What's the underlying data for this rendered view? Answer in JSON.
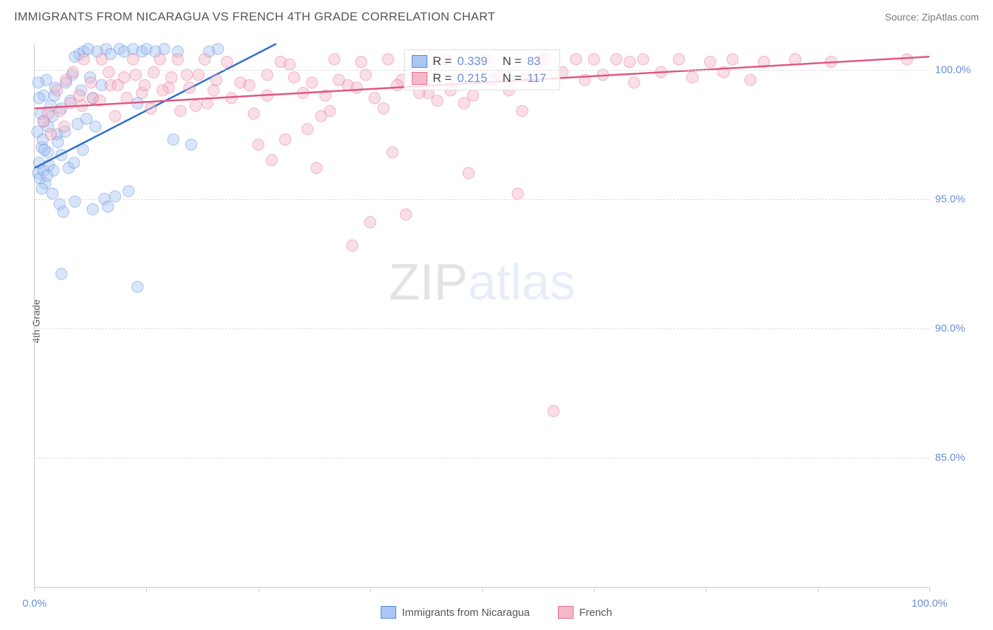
{
  "header": {
    "title": "IMMIGRANTS FROM NICARAGUA VS FRENCH 4TH GRADE CORRELATION CHART",
    "source_label": "Source: ZipAtlas.com"
  },
  "watermark": {
    "part1": "ZIP",
    "part2": "atlas"
  },
  "chart": {
    "type": "scatter",
    "y_axis_title": "4th Grade",
    "x_range": [
      0,
      100
    ],
    "y_range": [
      80,
      101
    ],
    "y_gridlines": [
      85,
      90,
      95,
      100
    ],
    "y_tick_labels": [
      "85.0%",
      "90.0%",
      "95.0%",
      "100.0%"
    ],
    "x_ticks": [
      0,
      12.5,
      25,
      37.5,
      50,
      62.5,
      75,
      87.5,
      100
    ],
    "x_tick_labels_at": {
      "0": "0.0%",
      "100": "100.0%"
    },
    "background_color": "#ffffff",
    "grid_color": "#dddddd",
    "axis_color": "#cccccc",
    "marker_radius": 8,
    "marker_opacity": 0.45,
    "line_width": 2.5,
    "series": [
      {
        "name": "Immigrants from Nicaragua",
        "color_fill": "#a9c6f5",
        "color_stroke": "#5b8ad6",
        "trend_color": "#2f6fd0",
        "R": "0.339",
        "N": "83",
        "trend_line": {
          "x1": 0,
          "y1": 96.2,
          "x2": 27,
          "y2": 101
        },
        "points": [
          [
            0.4,
            96.0
          ],
          [
            0.6,
            95.8
          ],
          [
            0.5,
            96.4
          ],
          [
            1.0,
            96.1
          ],
          [
            1.2,
            95.6
          ],
          [
            0.8,
            97.0
          ],
          [
            1.5,
            96.8
          ],
          [
            1.0,
            98.0
          ],
          [
            2.0,
            98.2
          ],
          [
            2.5,
            97.5
          ],
          [
            2.2,
            99.0
          ],
          [
            3.0,
            98.5
          ],
          [
            3.5,
            99.5
          ],
          [
            3.0,
            96.7
          ],
          [
            4.0,
            98.8
          ],
          [
            4.5,
            100.5
          ],
          [
            5.0,
            100.6
          ],
          [
            5.5,
            100.7
          ],
          [
            5.2,
            99.2
          ],
          [
            6.0,
            100.8
          ],
          [
            6.5,
            98.9
          ],
          [
            7.0,
            100.7
          ],
          [
            7.5,
            99.4
          ],
          [
            8.0,
            100.8
          ],
          [
            8.5,
            100.6
          ],
          [
            9.5,
            100.8
          ],
          [
            10.0,
            100.7
          ],
          [
            11.0,
            100.8
          ],
          [
            11.5,
            98.7
          ],
          [
            12.0,
            100.7
          ],
          [
            12.5,
            100.8
          ],
          [
            13.5,
            100.7
          ],
          [
            14.5,
            100.8
          ],
          [
            15.5,
            97.3
          ],
          [
            16.0,
            100.7
          ],
          [
            17.5,
            97.1
          ],
          [
            19.5,
            100.7
          ],
          [
            20.5,
            100.8
          ],
          [
            2.0,
            95.2
          ],
          [
            2.8,
            94.8
          ],
          [
            3.2,
            94.5
          ],
          [
            4.5,
            94.9
          ],
          [
            6.5,
            94.6
          ],
          [
            7.8,
            95.0
          ],
          [
            8.2,
            94.7
          ],
          [
            9.0,
            95.1
          ],
          [
            10.5,
            95.3
          ],
          [
            3.0,
            92.1
          ],
          [
            11.5,
            91.6
          ],
          [
            1.5,
            97.8
          ],
          [
            1.8,
            98.6
          ],
          [
            2.3,
            99.3
          ],
          [
            1.0,
            99.0
          ],
          [
            1.3,
            99.6
          ],
          [
            0.7,
            98.3
          ],
          [
            0.9,
            97.3
          ],
          [
            1.1,
            96.9
          ],
          [
            1.6,
            96.3
          ],
          [
            2.1,
            96.1
          ],
          [
            4.2,
            99.8
          ],
          [
            4.8,
            97.9
          ],
          [
            5.4,
            96.9
          ],
          [
            6.2,
            99.7
          ],
          [
            6.8,
            97.8
          ],
          [
            0.3,
            97.6
          ],
          [
            0.5,
            98.9
          ],
          [
            0.4,
            99.5
          ],
          [
            0.8,
            95.4
          ],
          [
            1.4,
            95.9
          ],
          [
            2.6,
            97.2
          ],
          [
            3.4,
            97.6
          ],
          [
            3.8,
            96.2
          ],
          [
            4.4,
            96.4
          ],
          [
            5.8,
            98.1
          ]
        ]
      },
      {
        "name": "French",
        "color_fill": "#f5b8c8",
        "color_stroke": "#e26b8e",
        "trend_color": "#e05680",
        "R": "0.215",
        "N": "117",
        "trend_line": {
          "x1": 0,
          "y1": 98.5,
          "x2": 100,
          "y2": 100.5
        },
        "points": [
          [
            1.5,
            98.3
          ],
          [
            2.5,
            99.2
          ],
          [
            3.5,
            99.6
          ],
          [
            4.0,
            98.7
          ],
          [
            5.0,
            99.0
          ],
          [
            5.5,
            100.4
          ],
          [
            6.5,
            98.9
          ],
          [
            7.5,
            100.4
          ],
          [
            8.5,
            99.4
          ],
          [
            9.0,
            98.2
          ],
          [
            10.0,
            99.7
          ],
          [
            11.0,
            100.4
          ],
          [
            12.0,
            99.1
          ],
          [
            13.0,
            98.5
          ],
          [
            14.0,
            100.4
          ],
          [
            15.0,
            99.3
          ],
          [
            16.0,
            100.4
          ],
          [
            17.0,
            99.8
          ],
          [
            18.0,
            98.6
          ],
          [
            19.0,
            100.4
          ],
          [
            20.0,
            99.2
          ],
          [
            21.5,
            100.3
          ],
          [
            23.0,
            99.5
          ],
          [
            24.5,
            98.3
          ],
          [
            26.0,
            99.0
          ],
          [
            27.5,
            100.3
          ],
          [
            29.0,
            99.7
          ],
          [
            30.5,
            97.7
          ],
          [
            32.0,
            98.2
          ],
          [
            33.5,
            100.4
          ],
          [
            35.0,
            99.4
          ],
          [
            36.5,
            100.3
          ],
          [
            38.0,
            98.9
          ],
          [
            39.5,
            100.4
          ],
          [
            41.0,
            99.6
          ],
          [
            42.5,
            100.3
          ],
          [
            44.0,
            99.1
          ],
          [
            46.0,
            100.4
          ],
          [
            48.0,
            98.7
          ],
          [
            50.5,
            100.4
          ],
          [
            52.0,
            99.8
          ],
          [
            54.0,
            95.2
          ],
          [
            57.0,
            100.4
          ],
          [
            60.5,
            100.4
          ],
          [
            62.5,
            100.4
          ],
          [
            65.0,
            100.4
          ],
          [
            66.5,
            100.3
          ],
          [
            68.0,
            100.4
          ],
          [
            72.0,
            100.4
          ],
          [
            75.5,
            100.3
          ],
          [
            78.0,
            100.4
          ],
          [
            81.5,
            100.3
          ],
          [
            85.0,
            100.4
          ],
          [
            89.0,
            100.3
          ],
          [
            97.5,
            100.4
          ],
          [
            25.0,
            97.1
          ],
          [
            26.5,
            96.5
          ],
          [
            28.0,
            97.3
          ],
          [
            30.0,
            99.1
          ],
          [
            31.5,
            96.2
          ],
          [
            33.0,
            98.4
          ],
          [
            35.5,
            93.2
          ],
          [
            37.5,
            94.1
          ],
          [
            40.0,
            96.8
          ],
          [
            41.5,
            94.4
          ],
          [
            44.5,
            100.3
          ],
          [
            46.5,
            99.2
          ],
          [
            48.5,
            96.0
          ],
          [
            54.5,
            98.4
          ],
          [
            56.5,
            100.3
          ],
          [
            58.0,
            86.8
          ],
          [
            1.0,
            98.0
          ],
          [
            1.8,
            97.5
          ],
          [
            2.8,
            98.4
          ],
          [
            3.3,
            97.8
          ],
          [
            4.3,
            99.9
          ],
          [
            5.3,
            98.6
          ],
          [
            6.3,
            99.5
          ],
          [
            7.3,
            98.8
          ],
          [
            8.3,
            99.9
          ],
          [
            9.3,
            99.4
          ],
          [
            10.3,
            98.9
          ],
          [
            11.3,
            99.8
          ],
          [
            12.3,
            99.4
          ],
          [
            13.3,
            99.9
          ],
          [
            14.3,
            99.2
          ],
          [
            15.3,
            99.7
          ],
          [
            16.3,
            98.4
          ],
          [
            17.3,
            99.3
          ],
          [
            18.3,
            99.8
          ],
          [
            19.3,
            98.7
          ],
          [
            20.3,
            99.6
          ],
          [
            22.0,
            98.9
          ],
          [
            24.0,
            99.4
          ],
          [
            26.0,
            99.8
          ],
          [
            28.5,
            100.2
          ],
          [
            31.0,
            99.5
          ],
          [
            32.5,
            99.0
          ],
          [
            34.0,
            99.6
          ],
          [
            36.0,
            99.3
          ],
          [
            37.0,
            99.8
          ],
          [
            39.0,
            98.5
          ],
          [
            40.5,
            99.4
          ],
          [
            43.0,
            99.1
          ],
          [
            45.0,
            98.8
          ],
          [
            47.0,
            99.5
          ],
          [
            49.0,
            99.0
          ],
          [
            51.0,
            99.6
          ],
          [
            53.0,
            99.2
          ],
          [
            55.0,
            99.7
          ],
          [
            59.0,
            99.9
          ],
          [
            61.5,
            99.6
          ],
          [
            63.5,
            99.8
          ],
          [
            67.0,
            99.5
          ],
          [
            70.0,
            99.9
          ],
          [
            73.5,
            99.7
          ],
          [
            77.0,
            99.9
          ],
          [
            80.0,
            99.6
          ]
        ]
      }
    ]
  },
  "legend_top": {
    "rows": [
      {
        "swatch_fill": "#a9c6f5",
        "swatch_stroke": "#5b8ad6",
        "r_label": "R =",
        "r_val": "0.339",
        "n_label": "N =",
        "n_val": "83"
      },
      {
        "swatch_fill": "#f5b8c8",
        "swatch_stroke": "#e26b8e",
        "r_label": "R =",
        "r_val": "0.215",
        "n_label": "N =",
        "n_val": "117"
      }
    ]
  },
  "legend_bottom": {
    "items": [
      {
        "swatch_fill": "#a9c6f5",
        "swatch_stroke": "#5b8ad6",
        "label": "Immigrants from Nicaragua"
      },
      {
        "swatch_fill": "#f5b8c8",
        "swatch_stroke": "#e26b8e",
        "label": "French"
      }
    ]
  }
}
